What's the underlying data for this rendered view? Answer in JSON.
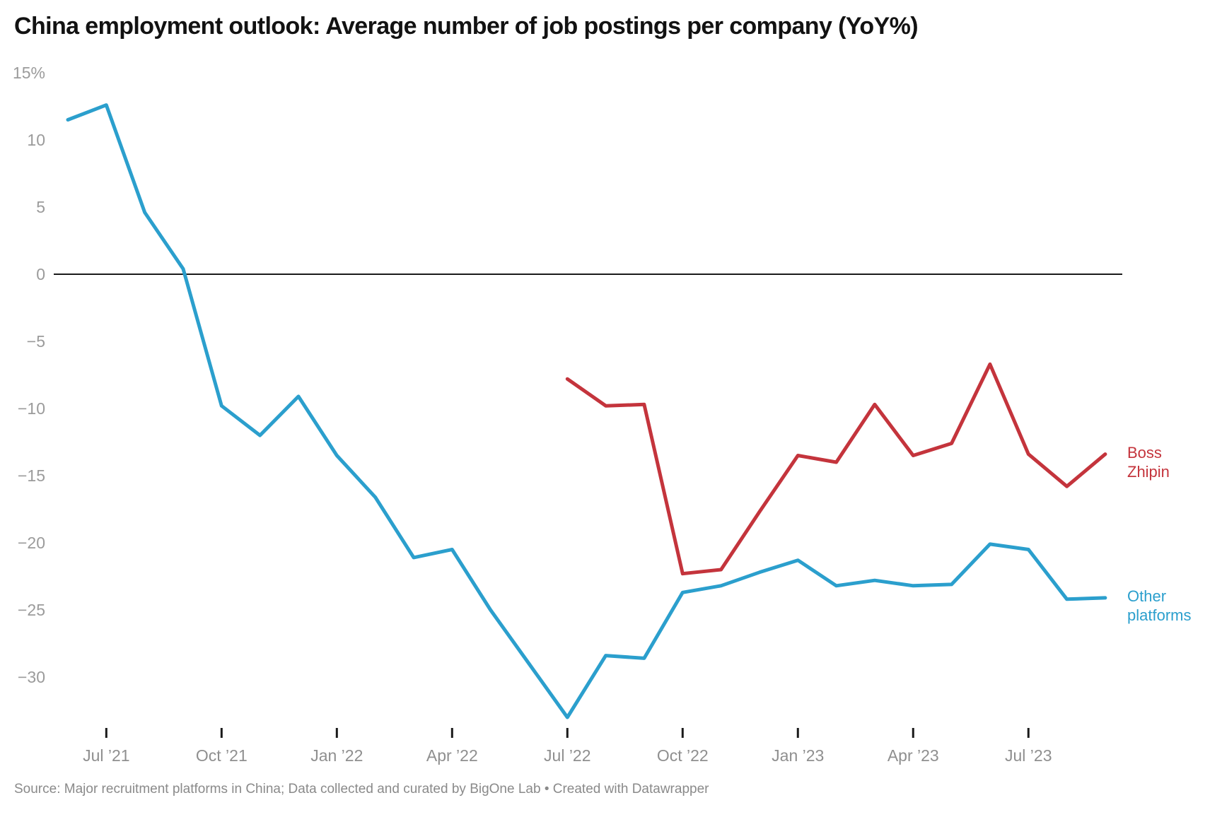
{
  "title": "China employment outlook: Average number of job postings per company (YoY%)",
  "source": "Source: Major recruitment platforms in China; Data collected and curated by BigOne Lab • Created with Datawrapper",
  "colors": {
    "boss_zhipin": "#c4343c",
    "other_platforms": "#2b9fcd",
    "zero_line": "#1a1a1a",
    "axis_text": "#9b9b9b",
    "tick_mark": "#1a1a1a"
  },
  "y_axis": {
    "ticks": [
      {
        "label": "15%",
        "value": 15
      },
      {
        "label": "10",
        "value": 10
      },
      {
        "label": "5",
        "value": 5
      },
      {
        "label": "0",
        "value": 0
      },
      {
        "label": "−5",
        "value": -5
      },
      {
        "label": "−10",
        "value": -10
      },
      {
        "label": "−15",
        "value": -15
      },
      {
        "label": "−20",
        "value": -20
      },
      {
        "label": "−25",
        "value": -25
      },
      {
        "label": "−30",
        "value": -30
      }
    ]
  },
  "x_axis": {
    "tick_indices": [
      1,
      4,
      7,
      10,
      13,
      16,
      19,
      22,
      25
    ]
  },
  "chart_data": {
    "type": "line",
    "title": "China employment outlook: Average number of job postings per company (YoY%)",
    "xlabel": "",
    "ylabel": "YoY %",
    "ylim": [
      -33.5,
      15
    ],
    "grid": "zero-line-only",
    "legend_position": "right-end-of-line-labels",
    "x": [
      "Jun ’21",
      "Jul ’21",
      "Aug ’21",
      "Sep ’21",
      "Oct ’21",
      "Nov ’21",
      "Dec ’21",
      "Jan ’22",
      "Feb ’22",
      "Mar ’22",
      "Apr ’22",
      "May ’22",
      "Jun ’22",
      "Jul ’22",
      "Aug ’22",
      "Sep ’22",
      "Oct ’22",
      "Nov ’22",
      "Dec ’22",
      "Jan ’23",
      "Feb ’23",
      "Mar ’23",
      "Apr ’23",
      "May ’23",
      "Jun ’23",
      "Jul ’23",
      "Aug ’23",
      "Sep ’23"
    ],
    "series": [
      {
        "name": "Boss Zhipin",
        "label_lines": [
          "Boss",
          "Zhipin"
        ],
        "color": "#c4343c",
        "start_index": 13,
        "values": [
          -7.8,
          -9.8,
          -9.7,
          -22.3,
          -22.0,
          -17.7,
          -13.5,
          -14.0,
          -9.7,
          -13.5,
          -12.6,
          -6.7,
          -13.4,
          -15.8,
          -13.4
        ]
      },
      {
        "name": "Other platforms",
        "label_lines": [
          "Other",
          "platforms"
        ],
        "color": "#2b9fcd",
        "start_index": 0,
        "values": [
          11.5,
          12.6,
          4.6,
          0.4,
          -9.8,
          -12.0,
          -9.1,
          -13.5,
          -16.6,
          -21.1,
          -20.5,
          -25.0,
          -29.0,
          -33.0,
          -28.4,
          -28.6,
          -23.7,
          -23.2,
          -22.2,
          -21.3,
          -23.2,
          -22.8,
          -23.2,
          -23.1,
          -20.1,
          -20.5,
          -24.2,
          -24.1
        ]
      }
    ]
  }
}
